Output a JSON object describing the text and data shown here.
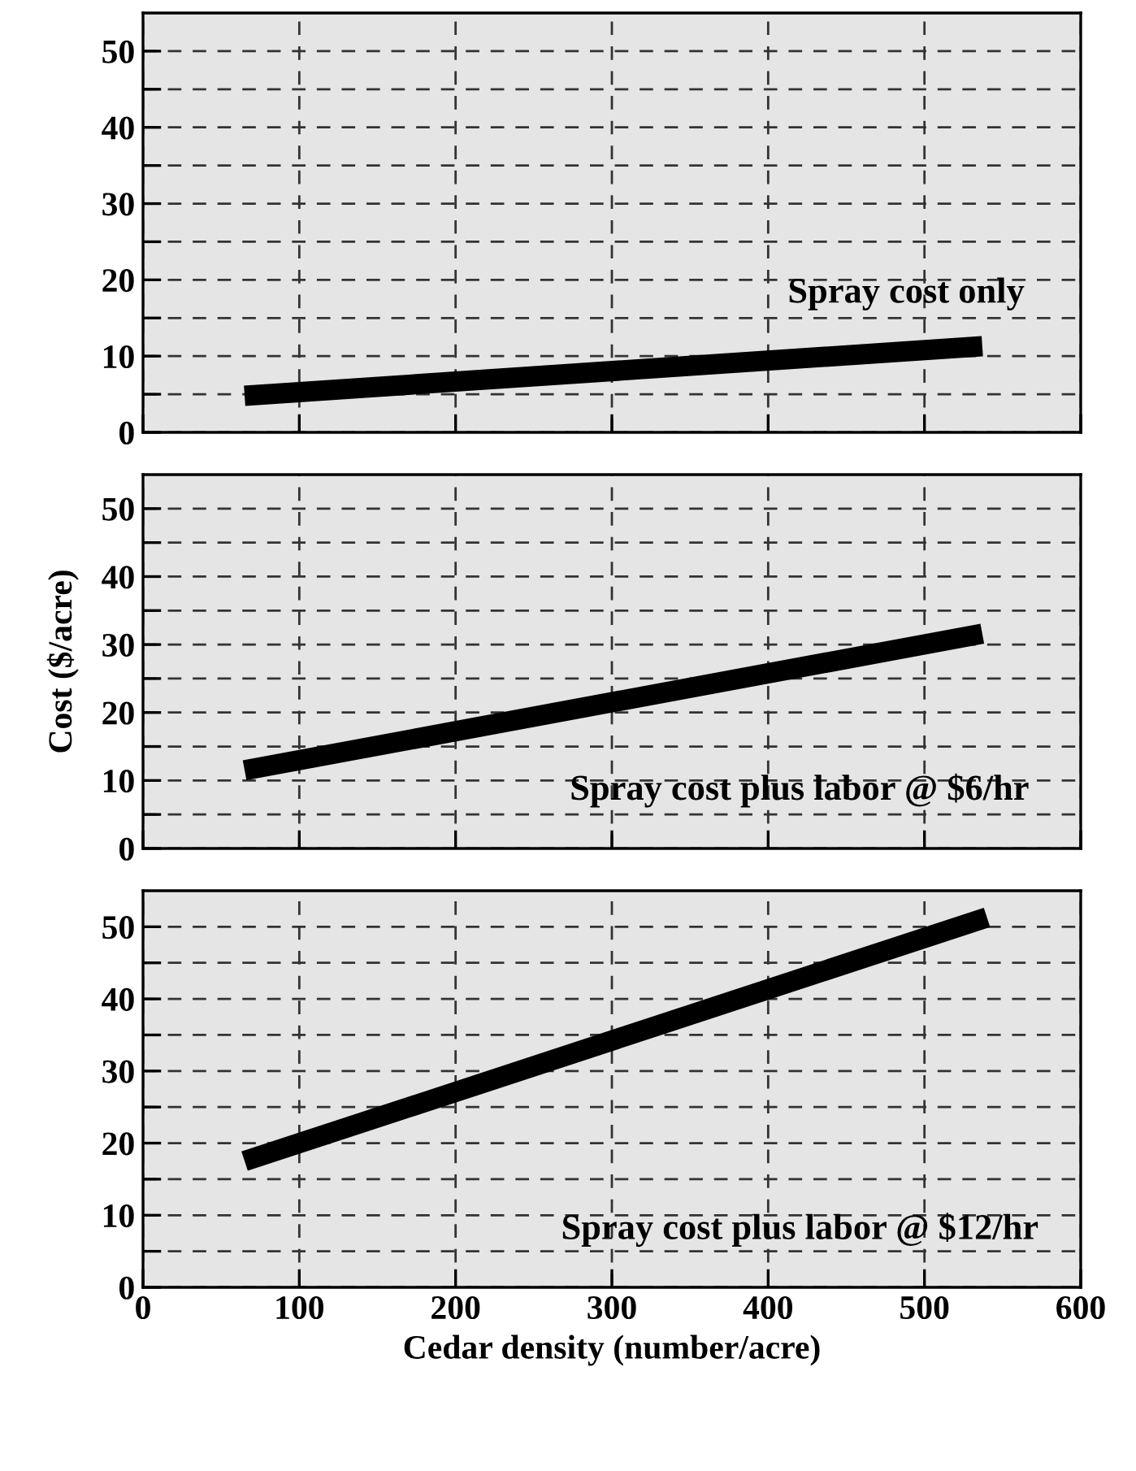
{
  "chart_data": [
    {
      "type": "line",
      "x": [
        65,
        537
      ],
      "series": [
        {
          "color": "#000000",
          "values": [
            4.8,
            11.3
          ]
        }
      ],
      "xlim": [
        0,
        600
      ],
      "xticks": [
        0,
        100,
        200,
        300,
        400,
        500,
        600
      ],
      "ylim": [
        0,
        55
      ],
      "yticks": [
        0,
        {
          "value": 5,
          "label": null
        },
        10,
        {
          "value": 15,
          "label": null
        },
        20,
        {
          "value": 25,
          "label": null
        },
        30,
        {
          "value": 35,
          "label": null
        },
        40,
        {
          "value": 45,
          "label": null
        },
        50
      ],
      "grid": true,
      "tick_labels": "y",
      "annotations": [
        "Spray cost only"
      ]
    },
    {
      "type": "line",
      "x": [
        65,
        537
      ],
      "series": [
        {
          "color": "#000000",
          "values": [
            11.5,
            31.6
          ]
        }
      ],
      "xlim": [
        0,
        600
      ],
      "xticks": [
        0,
        100,
        200,
        300,
        400,
        500,
        600
      ],
      "ylim": [
        0,
        55
      ],
      "yticks": [
        0,
        {
          "value": 5,
          "label": null
        },
        10,
        {
          "value": 15,
          "label": null
        },
        20,
        {
          "value": 25,
          "label": null
        },
        30,
        {
          "value": 35,
          "label": null
        },
        40,
        {
          "value": 45,
          "label": null
        },
        50
      ],
      "grid": true,
      "tick_labels": "y",
      "ylabel": "Cost ($/acre)",
      "annotations": [
        "Spray cost plus labor @ $6/hr"
      ]
    },
    {
      "type": "line",
      "x": [
        65,
        540
      ],
      "series": [
        {
          "color": "#000000",
          "values": [
            17.5,
            51.3
          ]
        }
      ],
      "xlim": [
        0,
        600
      ],
      "xticks": [
        0,
        100,
        200,
        300,
        400,
        500,
        600
      ],
      "ylim": [
        0,
        55
      ],
      "yticks": [
        0,
        {
          "value": 5,
          "label": null
        },
        10,
        {
          "value": 15,
          "label": null
        },
        20,
        {
          "value": 25,
          "label": null
        },
        30,
        {
          "value": 35,
          "label": null
        },
        40,
        {
          "value": 45,
          "label": null
        },
        50
      ],
      "grid": true,
      "xlabel": "Cedar density (number/acre)",
      "annotations": [
        "Spray cost plus labor @ $12/hr"
      ]
    }
  ]
}
